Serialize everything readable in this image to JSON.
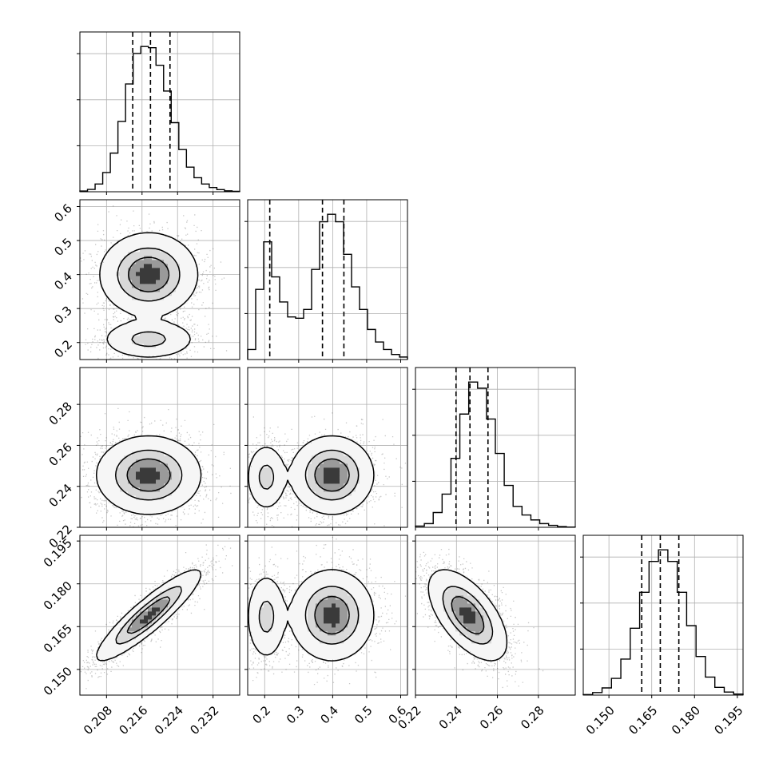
{
  "chart_data": {
    "type": "corner",
    "parameters": [
      {
        "range": [
          0.202,
          0.238
        ],
        "ticks": [
          0.208,
          0.216,
          0.224,
          0.232
        ],
        "tick_labels": [
          "0.208",
          "0.216",
          "0.224",
          "0.232"
        ],
        "quantiles": [
          0.2139,
          0.2179,
          0.2223
        ],
        "hist_values": [
          0.3,
          1.0,
          3.3,
          8.2,
          16.5,
          30.0,
          46.0,
          59.0,
          62.0,
          61.5,
          54.0,
          43.0,
          29.5,
          18.0,
          10.5,
          6.0,
          3.3,
          1.8,
          0.9,
          0.4,
          0.2
        ]
      },
      {
        "range": [
          0.15,
          0.62
        ],
        "ticks": [
          0.2,
          0.3,
          0.4,
          0.5,
          0.6
        ],
        "tick_labels": [
          "0.2",
          "0.3",
          "0.4",
          "0.5",
          "0.6"
        ],
        "quantiles": [
          0.215,
          0.37,
          0.433
        ],
        "hist_values": [
          4.0,
          28.0,
          47.0,
          33.0,
          23.0,
          17.0,
          16.5,
          20.0,
          36.0,
          55.0,
          58.0,
          55.0,
          42.0,
          29.0,
          20.0,
          12.0,
          7.0,
          4.0,
          2.0,
          1.0
        ]
      },
      {
        "range": [
          0.22,
          0.298
        ],
        "ticks": [
          0.22,
          0.24,
          0.26,
          0.28
        ],
        "tick_labels": [
          "0.22",
          "0.24",
          "0.26",
          "0.28"
        ],
        "quantiles": [
          0.2398,
          0.2466,
          0.2554
        ],
        "hist_values": [
          0.5,
          1.5,
          6.0,
          13.5,
          28.0,
          46.0,
          59.0,
          56.5,
          44.0,
          30.0,
          17.0,
          8.5,
          5.0,
          3.0,
          1.5,
          0.8,
          0.3,
          0.1
        ]
      },
      {
        "range": [
          0.141,
          0.197
        ],
        "ticks": [
          0.15,
          0.165,
          0.18,
          0.195
        ],
        "tick_labels": [
          "0.150",
          "0.165",
          "0.180",
          "0.195"
        ],
        "quantiles": [
          0.1615,
          0.168,
          0.1745
        ],
        "hist_values": [
          0.2,
          1.0,
          2.8,
          6.5,
          14.0,
          26.0,
          40.0,
          52.0,
          56.5,
          52.0,
          40.0,
          27.0,
          15.0,
          7.0,
          3.0,
          1.2,
          0.4
        ]
      }
    ],
    "row_tick_labels": {
      "1": [
        "0.2",
        "0.3",
        "0.4",
        "0.5",
        "0.6"
      ],
      "2": [
        "0.22",
        "0.24",
        "0.26",
        "0.28"
      ],
      "3": [
        "0.150",
        "0.165",
        "0.180",
        "0.195"
      ]
    },
    "joint_modes": [
      {
        "row": 1,
        "col": 0,
        "modes": [
          {
            "x": 0.2175,
            "y": 0.4,
            "sx": 0.0045,
            "sy": 0.05,
            "w": 0.7,
            "rho": 0.0
          },
          {
            "x": 0.2175,
            "y": 0.21,
            "sx": 0.0045,
            "sy": 0.025,
            "w": 0.3,
            "rho": 0.0
          }
        ]
      },
      {
        "row": 2,
        "col": 0,
        "modes": [
          {
            "x": 0.2175,
            "y": 0.2455,
            "sx": 0.0048,
            "sy": 0.0078,
            "w": 1.0,
            "rho": 0.0
          }
        ]
      },
      {
        "row": 2,
        "col": 1,
        "modes": [
          {
            "x": 0.205,
            "y": 0.2445,
            "sx": 0.025,
            "sy": 0.007,
            "w": 0.3,
            "rho": 0.0
          },
          {
            "x": 0.398,
            "y": 0.2455,
            "sx": 0.05,
            "sy": 0.0078,
            "w": 0.7,
            "rho": 0.0
          }
        ]
      },
      {
        "row": 3,
        "col": 0,
        "modes": [
          {
            "x": 0.2175,
            "y": 0.169,
            "sx": 0.0048,
            "sy": 0.0065,
            "w": 1.0,
            "rho": 0.9
          }
        ]
      },
      {
        "row": 3,
        "col": 1,
        "modes": [
          {
            "x": 0.205,
            "y": 0.1685,
            "sx": 0.025,
            "sy": 0.0065,
            "w": 0.3,
            "rho": 0.0
          },
          {
            "x": 0.398,
            "y": 0.169,
            "sx": 0.05,
            "sy": 0.0065,
            "w": 0.7,
            "rho": 0.0
          }
        ]
      },
      {
        "row": 3,
        "col": 2,
        "modes": [
          {
            "x": 0.2455,
            "y": 0.169,
            "sx": 0.0078,
            "sy": 0.0065,
            "w": 1.0,
            "rho": -0.6
          }
        ]
      }
    ],
    "contour_levels": [
      0.05,
      0.3,
      0.6
    ],
    "grid": true,
    "colors": {
      "points": "#000000",
      "lines": "#000000",
      "grid": "#b0b0b0",
      "background": "#ffffff"
    }
  }
}
